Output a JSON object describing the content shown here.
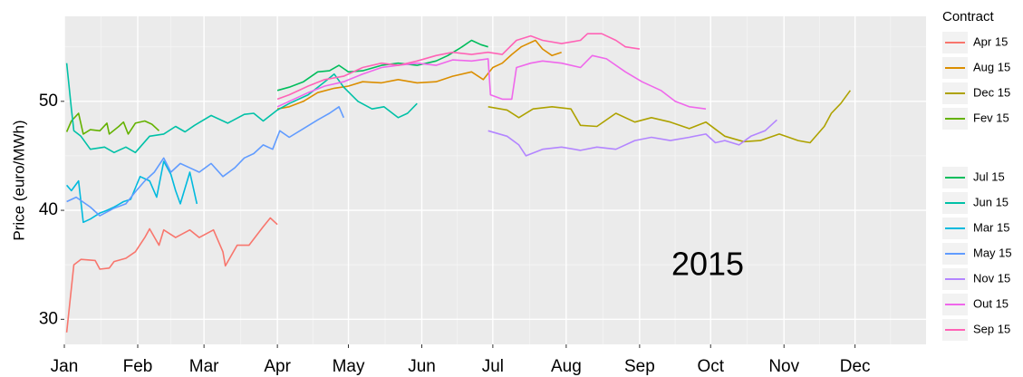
{
  "chart_data": {
    "type": "line",
    "y_label": "Price (euro/MWh)",
    "annotation": "2015",
    "legend_title": "Contract",
    "xlim": [
      0,
      364
    ],
    "xticks": [
      {
        "value": 0,
        "label": "Jan"
      },
      {
        "value": 31,
        "label": "Feb"
      },
      {
        "value": 59,
        "label": "Mar"
      },
      {
        "value": 90,
        "label": "Apr"
      },
      {
        "value": 120,
        "label": "May"
      },
      {
        "value": 151,
        "label": "Jun"
      },
      {
        "value": 181,
        "label": "Jul"
      },
      {
        "value": 212,
        "label": "Aug"
      },
      {
        "value": 243,
        "label": "Sep"
      },
      {
        "value": 273,
        "label": "Oct"
      },
      {
        "value": 304,
        "label": "Nov"
      },
      {
        "value": 334,
        "label": "Dec"
      }
    ],
    "ylim": [
      27.7,
      57.8
    ],
    "yticks": [
      30,
      40,
      50
    ],
    "grid": true,
    "legend": "right",
    "series": [
      {
        "name": "Apr 15",
        "color": "#F8766D",
        "x": [
          1,
          4,
          7,
          13,
          15,
          19,
          21,
          26,
          30,
          34,
          36,
          40,
          42,
          47,
          53,
          57,
          63,
          67,
          68,
          73,
          78,
          84,
          87,
          90
        ],
        "values": [
          28.8,
          35,
          35.5,
          35.4,
          34.6,
          34.7,
          35.3,
          35.6,
          36.2,
          37.5,
          38.3,
          36.8,
          38.2,
          37.5,
          38.2,
          37.5,
          38.2,
          36.2,
          34.9,
          36.8,
          36.8,
          38.5,
          39.3,
          38.7
        ]
      },
      {
        "name": "Aug 15",
        "color": "#DB8E00",
        "x": [
          90,
          95,
          101,
          107,
          114,
          120,
          126,
          134,
          141,
          149,
          157,
          164,
          172,
          177,
          181,
          185,
          189,
          193,
          199,
          202,
          206,
          210
        ],
        "values": [
          49.3,
          49.5,
          50,
          50.8,
          51.2,
          51.4,
          51.8,
          51.7,
          52,
          51.7,
          51.8,
          52.3,
          52.7,
          52,
          53.1,
          53.5,
          54.3,
          55,
          55.6,
          54.8,
          54.2,
          54.5
        ]
      },
      {
        "name": "Dec 15",
        "color": "#AEA200",
        "x": [
          179,
          187,
          192,
          198,
          206,
          214,
          218,
          225,
          233,
          241,
          248,
          256,
          264,
          271,
          279,
          287,
          294,
          302,
          310,
          315,
          321,
          324,
          328,
          332
        ],
        "values": [
          49.5,
          49.2,
          48.5,
          49.3,
          49.5,
          49.3,
          47.8,
          47.7,
          48.9,
          48.1,
          48.5,
          48.1,
          47.5,
          48.1,
          46.8,
          46.3,
          46.4,
          47,
          46.4,
          46.2,
          47.7,
          48.9,
          49.8,
          51
        ]
      },
      {
        "name": "Fev 15",
        "color": "#64B200",
        "x": [
          1,
          3,
          6,
          8,
          11,
          15,
          18,
          19,
          23,
          25,
          27,
          30,
          34,
          37,
          40
        ],
        "values": [
          47.2,
          48.2,
          48.9,
          47,
          47.4,
          47.3,
          48,
          47,
          47.7,
          48.1,
          47,
          48,
          48.2,
          47.9,
          47.3
        ]
      },
      {
        "name": "Jul 15",
        "color": "#00BD5C",
        "x": [
          90,
          95,
          101,
          107,
          112,
          116,
          120,
          126,
          134,
          141,
          149,
          157,
          162,
          168,
          172,
          176,
          179
        ],
        "values": [
          51,
          51.3,
          51.8,
          52.7,
          52.8,
          53.3,
          52.7,
          52.8,
          53.3,
          53.5,
          53.3,
          53.7,
          54.2,
          55,
          55.6,
          55.2,
          55
        ]
      },
      {
        "name": "Jun 15",
        "color": "#00C1A7",
        "x": [
          1,
          3,
          4,
          7,
          11,
          17,
          21,
          26,
          30,
          36,
          42,
          47,
          51,
          55,
          62,
          69,
          76,
          80,
          84,
          90,
          95,
          103,
          110,
          114,
          118,
          124,
          130,
          135,
          141,
          145,
          149
        ],
        "values": [
          53.5,
          49.3,
          47.3,
          46.8,
          45.6,
          45.8,
          45.3,
          45.8,
          45.3,
          46.8,
          47,
          47.7,
          47.2,
          47.8,
          48.7,
          48,
          48.8,
          48.9,
          48.2,
          49.2,
          49.8,
          50.6,
          51.8,
          52.5,
          51.3,
          50,
          49.3,
          49.5,
          48.5,
          48.9,
          49.8
        ]
      },
      {
        "name": "Mar 15",
        "color": "#00BADE",
        "x": [
          1,
          3,
          6,
          8,
          11,
          15,
          18,
          21,
          25,
          28,
          32,
          36,
          39,
          42,
          45,
          47,
          49,
          53,
          56
        ],
        "values": [
          42.3,
          41.8,
          42.7,
          38.9,
          39.2,
          39.75,
          40,
          40.3,
          40.8,
          41,
          43.1,
          42.7,
          41.2,
          44.5,
          43.3,
          41.8,
          40.6,
          43.5,
          40.6
        ]
      },
      {
        "name": "May 15",
        "color": "#619CFF",
        "x": [
          1,
          5,
          11,
          15,
          21,
          26,
          30,
          34,
          38,
          42,
          45,
          49,
          53,
          57,
          62,
          67,
          72,
          76,
          80,
          84,
          88,
          91,
          95,
          101,
          107,
          112,
          116,
          118
        ],
        "values": [
          40.8,
          41.2,
          40.3,
          39.5,
          40.2,
          40.6,
          41.7,
          42.7,
          43.5,
          44.8,
          43.5,
          44.3,
          43.9,
          43.5,
          44.3,
          43.1,
          43.9,
          44.8,
          45.2,
          46,
          45.6,
          47.3,
          46.7,
          47.5,
          48.3,
          48.9,
          49.5,
          48.5
        ]
      },
      {
        "name": "Nov 15",
        "color": "#B385FF",
        "x": [
          179,
          187,
          192,
          195,
          202,
          210,
          218,
          225,
          233,
          241,
          248,
          256,
          264,
          271,
          275,
          279,
          285,
          290,
          296,
          301
        ],
        "values": [
          47.3,
          46.8,
          46,
          45,
          45.6,
          45.8,
          45.5,
          45.8,
          45.6,
          46.4,
          46.7,
          46.4,
          46.7,
          47,
          46.2,
          46.4,
          46,
          46.8,
          47.3,
          48.3
        ]
      },
      {
        "name": "Out 15",
        "color": "#EF67EB",
        "x": [
          90,
          95,
          103,
          110,
          118,
          126,
          134,
          141,
          149,
          157,
          164,
          172,
          179,
          180,
          185,
          189,
          191,
          197,
          202,
          210,
          218,
          223,
          229,
          237,
          244,
          252,
          258,
          264,
          271
        ],
        "values": [
          49.5,
          50,
          50.8,
          51.4,
          51.8,
          52.5,
          53.1,
          53.3,
          53.5,
          53.3,
          53.8,
          53.7,
          53.9,
          50.6,
          50.2,
          50.2,
          53.1,
          53.5,
          53.7,
          53.5,
          53.1,
          54.2,
          53.9,
          52.7,
          51.8,
          51,
          50,
          49.5,
          49.3
        ]
      },
      {
        "name": "Sep 15",
        "color": "#FF63B6",
        "x": [
          90,
          95,
          103,
          110,
          118,
          126,
          134,
          141,
          149,
          157,
          164,
          172,
          179,
          185,
          191,
          197,
          202,
          210,
          218,
          221,
          227,
          233,
          237,
          243
        ],
        "values": [
          50.2,
          50.6,
          51.4,
          52,
          52.3,
          53.1,
          53.5,
          53.3,
          53.7,
          54.2,
          54.5,
          54.3,
          54.5,
          54.3,
          55.6,
          56,
          55.6,
          55.3,
          55.6,
          56.2,
          56.2,
          55.6,
          55,
          54.8
        ]
      }
    ]
  }
}
